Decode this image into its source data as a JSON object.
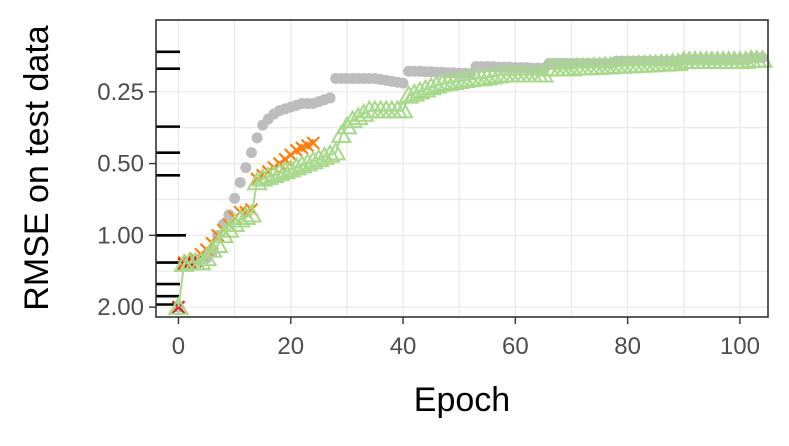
{
  "chart_data": {
    "type": "scatter",
    "xlabel": "Epoch",
    "ylabel": "RMSE on test data",
    "xlim": [
      -4,
      105
    ],
    "ylim": [
      2.2,
      0.125
    ],
    "y_scale": "log2-reversed",
    "x_ticks": [
      0,
      20,
      40,
      60,
      80,
      100
    ],
    "x_tick_labels": [
      "0",
      "20",
      "40",
      "60",
      "80",
      "100"
    ],
    "y_ticks": [
      0.25,
      0.5,
      1.0,
      2.0
    ],
    "y_tick_labels": [
      "0.25",
      "0.50",
      "1.00",
      "2.00"
    ],
    "grid": true,
    "legend": "none",
    "colors": {
      "gray_series": "#bdbdbd",
      "orange_series": "#ff7f0e",
      "red_series": "#d62728",
      "green_series": "#a6d98a",
      "rug": "#000000"
    },
    "series": [
      {
        "marker": "circle",
        "color": "#bdbdbd",
        "x": [
          0,
          1,
          2,
          3,
          4,
          5,
          6,
          7,
          8,
          9,
          10,
          11,
          12,
          13,
          14,
          15,
          16,
          17,
          18,
          19,
          20,
          21,
          22,
          23,
          24,
          25,
          26,
          27,
          28,
          29,
          30,
          31,
          32,
          33,
          34,
          35,
          36,
          37,
          38,
          39,
          40,
          41,
          42,
          43,
          44,
          45,
          46,
          47,
          48,
          49,
          50,
          51,
          52,
          53,
          54,
          55,
          56,
          57,
          58,
          59,
          60,
          61,
          62,
          63,
          64,
          65,
          66,
          67,
          68,
          69,
          70,
          71,
          72,
          73,
          74,
          75,
          76,
          77,
          78,
          79,
          80,
          81,
          82,
          83,
          84,
          85,
          86,
          87,
          88,
          89,
          90,
          91,
          92,
          93,
          94,
          95,
          96,
          97,
          98,
          99,
          100,
          101,
          102,
          103,
          104
        ],
        "y": [
          2.0,
          1.3,
          1.3,
          1.28,
          1.26,
          1.25,
          1.18,
          1.0,
          0.9,
          0.82,
          0.7,
          0.6,
          0.52,
          0.45,
          0.39,
          0.345,
          0.325,
          0.31,
          0.3,
          0.295,
          0.29,
          0.285,
          0.28,
          0.28,
          0.28,
          0.275,
          0.27,
          0.265,
          0.22,
          0.22,
          0.22,
          0.22,
          0.22,
          0.22,
          0.22,
          0.22,
          0.222,
          0.224,
          0.226,
          0.228,
          0.23,
          0.205,
          0.205,
          0.205,
          0.206,
          0.206,
          0.207,
          0.207,
          0.208,
          0.208,
          0.209,
          0.209,
          0.21,
          0.196,
          0.196,
          0.196,
          0.196,
          0.197,
          0.197,
          0.197,
          0.198,
          0.198,
          0.198,
          0.199,
          0.199,
          0.199,
          0.19,
          0.19,
          0.19,
          0.19,
          0.19,
          0.19,
          0.19,
          0.19,
          0.19,
          0.19,
          0.19,
          0.19,
          0.186,
          0.186,
          0.186,
          0.186,
          0.186,
          0.186,
          0.186,
          0.186,
          0.186,
          0.186,
          0.186,
          0.186,
          0.183,
          0.183,
          0.183,
          0.183,
          0.183,
          0.183,
          0.183,
          0.183,
          0.183,
          0.183,
          0.183,
          0.183,
          0.18,
          0.18,
          0.18
        ]
      },
      {
        "marker": "cross",
        "color": "#ff7f0e",
        "x": [
          0,
          1,
          2,
          3,
          4,
          5,
          6,
          7,
          8,
          9,
          10,
          11,
          12,
          13,
          14,
          15,
          16,
          17,
          18,
          19,
          20,
          21,
          22,
          23,
          24
        ],
        "y": [
          2.0,
          1.3,
          1.28,
          1.25,
          1.2,
          1.15,
          1.08,
          1.0,
          0.95,
          0.9,
          0.84,
          0.8,
          0.8,
          0.78,
          0.58,
          0.56,
          0.54,
          0.52,
          0.5,
          0.48,
          0.46,
          0.44,
          0.43,
          0.42,
          0.41
        ]
      },
      {
        "marker": "cross",
        "color": "#d62728",
        "x": [
          0,
          1,
          2,
          3
        ],
        "y": [
          2.0,
          1.32,
          1.3,
          1.28
        ]
      },
      {
        "marker": "triangle",
        "color": "#a6d98a",
        "x": [
          0,
          1,
          2,
          3,
          4,
          5,
          6,
          7,
          8,
          9,
          10,
          11,
          12,
          13,
          14,
          15,
          16,
          17,
          18,
          19,
          20,
          21,
          22,
          23,
          24,
          25,
          26,
          27,
          28,
          29,
          30,
          31,
          32,
          33,
          34,
          35,
          36,
          37,
          38,
          39,
          40,
          41,
          42,
          43,
          44,
          45,
          46,
          47,
          48,
          49,
          50,
          51,
          52,
          53,
          54,
          55,
          56,
          57,
          58,
          59,
          60,
          61,
          62,
          63,
          64,
          65,
          66,
          67,
          68,
          69,
          70,
          71,
          72,
          73,
          74,
          75,
          76,
          77,
          78,
          79,
          80,
          81,
          82,
          83,
          84,
          85,
          86,
          87,
          88,
          89,
          90,
          91,
          92,
          93,
          94,
          95,
          96,
          97,
          98,
          99,
          100,
          101,
          102,
          103,
          104
        ],
        "y": [
          2.0,
          1.32,
          1.3,
          1.3,
          1.3,
          1.25,
          1.15,
          1.1,
          1.0,
          0.95,
          0.9,
          0.86,
          0.84,
          0.82,
          0.6,
          0.58,
          0.57,
          0.56,
          0.55,
          0.54,
          0.53,
          0.52,
          0.51,
          0.5,
          0.49,
          0.48,
          0.47,
          0.46,
          0.45,
          0.38,
          0.35,
          0.33,
          0.32,
          0.31,
          0.3,
          0.3,
          0.3,
          0.3,
          0.3,
          0.3,
          0.3,
          0.26,
          0.255,
          0.25,
          0.245,
          0.24,
          0.236,
          0.232,
          0.23,
          0.228,
          0.226,
          0.224,
          0.222,
          0.22,
          0.22,
          0.218,
          0.216,
          0.214,
          0.212,
          0.212,
          0.212,
          0.212,
          0.212,
          0.212,
          0.212,
          0.212,
          0.2,
          0.2,
          0.2,
          0.2,
          0.2,
          0.198,
          0.198,
          0.198,
          0.197,
          0.197,
          0.196,
          0.196,
          0.195,
          0.195,
          0.194,
          0.194,
          0.193,
          0.193,
          0.192,
          0.192,
          0.191,
          0.191,
          0.19,
          0.19,
          0.186,
          0.186,
          0.186,
          0.186,
          0.186,
          0.186,
          0.186,
          0.186,
          0.186,
          0.186,
          0.186,
          0.186,
          0.184,
          0.184,
          0.184
        ]
      }
    ],
    "rug_y": [
      0.17,
      0.2,
      0.35,
      0.45,
      0.56,
      1.0,
      1.3,
      1.6,
      1.8,
      1.95
    ]
  }
}
